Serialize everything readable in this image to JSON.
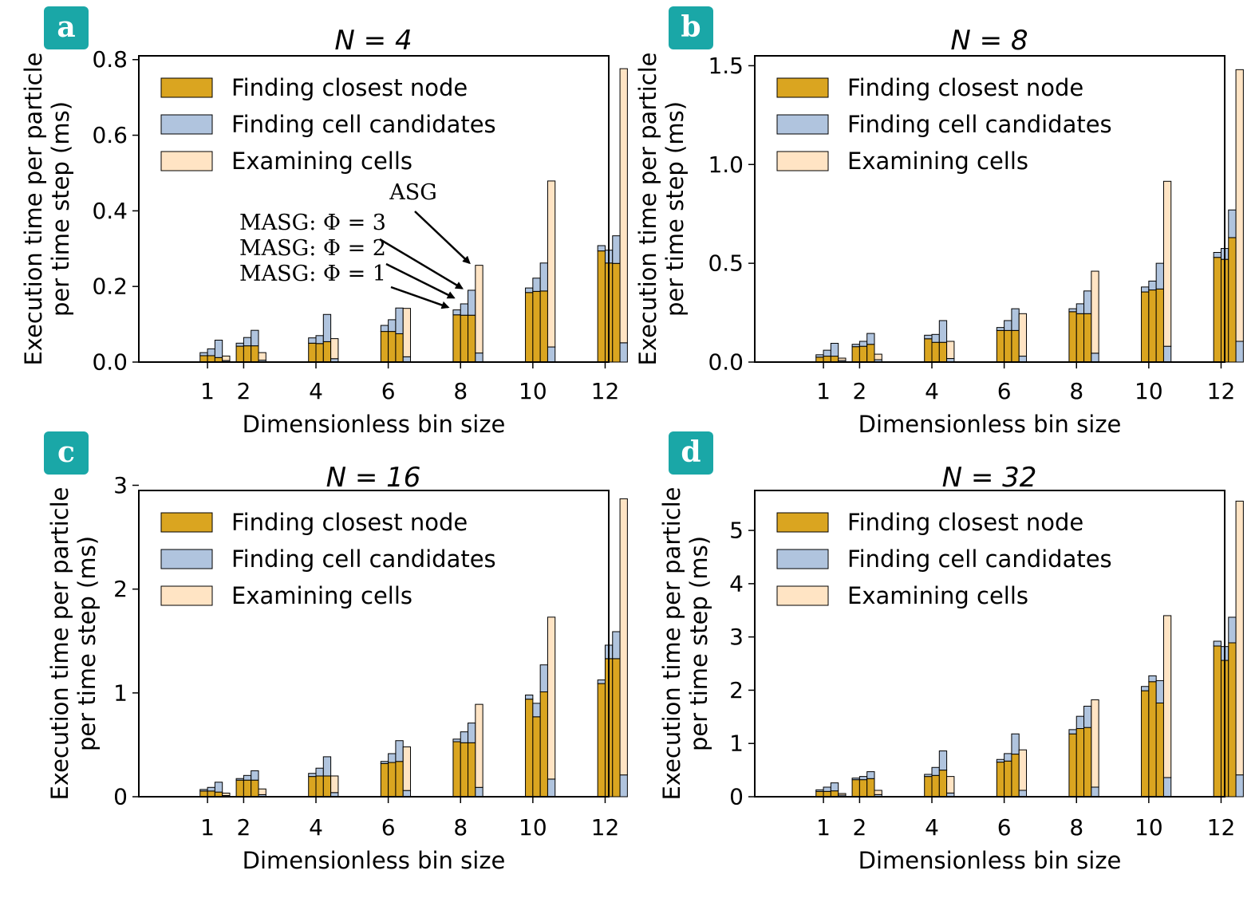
{
  "colors": {
    "closest_node": "#DAA520",
    "cell_candidates": "#B0C4DE",
    "examining_cells": "#FFE4C4",
    "badge": "#1AA7A7",
    "badge_text": "#ffffff",
    "bar_edge": "#000000"
  },
  "legend": [
    "Finding closest node",
    "Finding cell candidates",
    "Examining cells"
  ],
  "annotations": {
    "asg": "ASG",
    "masg3": "MASG: Φ = 3",
    "masg2": "MASG: Φ = 2",
    "masg1": "MASG: Φ = 1"
  },
  "chart_data": [
    {
      "type": "bar",
      "panel_label": "a",
      "title": "N = 4",
      "xlabel": "Dimensionless bin size",
      "ylabel": [
        "Execution time per particle",
        "per time step (ms)"
      ],
      "x": [
        1,
        2,
        4,
        6,
        8,
        10,
        12
      ],
      "xlim": [
        -0.9,
        12.1
      ],
      "ylim": [
        0,
        0.81
      ],
      "yticks": [
        "0.0",
        "0.2",
        "0.4",
        "0.6",
        "0.8"
      ],
      "ytick_values": [
        0,
        0.2,
        0.4,
        0.6,
        0.8
      ],
      "legend_position": "top-left",
      "series": [
        {
          "name": "MASG: Φ = 1",
          "closest_node": [
            0.017,
            0.042,
            0.05,
            0.081,
            0.125,
            0.184,
            0.294
          ],
          "cell_candidates": [
            0.008,
            0.008,
            0.014,
            0.016,
            0.013,
            0.012,
            0.014
          ]
        },
        {
          "name": "MASG: Φ = 2",
          "closest_node": [
            0.017,
            0.043,
            0.049,
            0.081,
            0.124,
            0.187,
            0.262
          ],
          "cell_candidates": [
            0.018,
            0.022,
            0.021,
            0.031,
            0.03,
            0.035,
            0.034
          ]
        },
        {
          "name": "MASG: Φ = 3",
          "closest_node": [
            0.012,
            0.043,
            0.054,
            0.075,
            0.124,
            0.188,
            0.261
          ],
          "cell_candidates": [
            0.046,
            0.041,
            0.072,
            0.068,
            0.066,
            0.074,
            0.073
          ]
        },
        {
          "name": "ASG",
          "cell_candidates": [
            0.004,
            0.005,
            0.009,
            0.014,
            0.024,
            0.04,
            0.051
          ],
          "examining_cells": [
            0.012,
            0.02,
            0.053,
            0.128,
            0.232,
            0.439,
            0.725
          ]
        }
      ]
    },
    {
      "type": "bar",
      "panel_label": "b",
      "title": "N = 8",
      "xlabel": "Dimensionless bin size",
      "ylabel": [
        "Execution time per particle",
        "per time step (ms)"
      ],
      "x": [
        1,
        2,
        4,
        6,
        8,
        10,
        12
      ],
      "xlim": [
        -0.9,
        12.1
      ],
      "ylim": [
        0,
        1.55
      ],
      "yticks": [
        "0.0",
        "0.5",
        "1.0",
        "1.5"
      ],
      "ytick_values": [
        0,
        0.5,
        1.0,
        1.5
      ],
      "legend_position": "top-left",
      "series": [
        {
          "name": "MASG: Φ = 1",
          "closest_node": [
            0.025,
            0.078,
            0.118,
            0.16,
            0.255,
            0.355,
            0.53
          ],
          "cell_candidates": [
            0.012,
            0.012,
            0.018,
            0.015,
            0.015,
            0.025,
            0.025
          ]
        },
        {
          "name": "MASG: Φ = 2",
          "closest_node": [
            0.03,
            0.08,
            0.1,
            0.16,
            0.245,
            0.365,
            0.52
          ],
          "cell_candidates": [
            0.03,
            0.025,
            0.04,
            0.05,
            0.05,
            0.045,
            0.055
          ]
        },
        {
          "name": "MASG: Φ = 3",
          "closest_node": [
            0.03,
            0.09,
            0.1,
            0.16,
            0.245,
            0.37,
            0.63
          ],
          "cell_candidates": [
            0.065,
            0.055,
            0.11,
            0.11,
            0.115,
            0.13,
            0.14
          ]
        },
        {
          "name": "ASG",
          "cell_candidates": [
            0.008,
            0.012,
            0.018,
            0.03,
            0.045,
            0.08,
            0.105
          ],
          "examining_cells": [
            0.012,
            0.028,
            0.087,
            0.215,
            0.415,
            0.835,
            1.375
          ]
        }
      ]
    },
    {
      "type": "bar",
      "panel_label": "c",
      "title": "N = 16",
      "xlabel": "Dimensionless bin size",
      "ylabel": [
        "Execution time per particle",
        "per time step (ms)"
      ],
      "x": [
        1,
        2,
        4,
        6,
        8,
        10,
        12
      ],
      "xlim": [
        -0.9,
        12.1
      ],
      "ylim": [
        0,
        2.95
      ],
      "yticks": [
        "0",
        "1",
        "2",
        "3"
      ],
      "ytick_values": [
        0,
        1,
        2,
        3
      ],
      "legend_position": "top-left",
      "series": [
        {
          "name": "MASG: Φ = 1",
          "closest_node": [
            0.055,
            0.16,
            0.195,
            0.32,
            0.53,
            0.94,
            1.09
          ],
          "cell_candidates": [
            0.015,
            0.015,
            0.03,
            0.02,
            0.025,
            0.04,
            0.035
          ]
        },
        {
          "name": "MASG: Φ = 2",
          "closest_node": [
            0.055,
            0.16,
            0.2,
            0.33,
            0.52,
            0.77,
            1.33
          ],
          "cell_candidates": [
            0.035,
            0.045,
            0.075,
            0.085,
            0.105,
            0.13,
            0.13
          ]
        },
        {
          "name": "MASG: Φ = 3",
          "closest_node": [
            0.045,
            0.16,
            0.2,
            0.34,
            0.52,
            1.01,
            1.33
          ],
          "cell_candidates": [
            0.095,
            0.09,
            0.185,
            0.2,
            0.19,
            0.26,
            0.26
          ]
        },
        {
          "name": "ASG",
          "cell_candidates": [
            0.012,
            0.02,
            0.04,
            0.06,
            0.09,
            0.17,
            0.21
          ],
          "examining_cells": [
            0.023,
            0.055,
            0.16,
            0.42,
            0.8,
            1.56,
            2.66
          ]
        }
      ]
    },
    {
      "type": "bar",
      "panel_label": "d",
      "title": "N = 32",
      "xlabel": "Dimensionless bin size",
      "ylabel": [
        "Execution time per particle",
        "per time step (ms)"
      ],
      "x": [
        1,
        2,
        4,
        6,
        8,
        10,
        12
      ],
      "xlim": [
        -0.9,
        12.1
      ],
      "ylim": [
        0,
        5.75
      ],
      "yticks": [
        "0",
        "1",
        "2",
        "3",
        "4",
        "5"
      ],
      "ytick_values": [
        0,
        1,
        2,
        3,
        4,
        5
      ],
      "legend_position": "top-left",
      "series": [
        {
          "name": "MASG: Φ = 1",
          "closest_node": [
            0.1,
            0.32,
            0.38,
            0.65,
            1.18,
            1.99,
            2.83
          ],
          "cell_candidates": [
            0.03,
            0.03,
            0.04,
            0.05,
            0.08,
            0.08,
            0.09
          ]
        },
        {
          "name": "MASG: Φ = 2",
          "closest_node": [
            0.1,
            0.32,
            0.4,
            0.67,
            1.28,
            2.16,
            2.56
          ],
          "cell_candidates": [
            0.08,
            0.06,
            0.15,
            0.14,
            0.23,
            0.11,
            0.26
          ]
        },
        {
          "name": "MASG: Φ = 3",
          "closest_node": [
            0.11,
            0.34,
            0.5,
            0.8,
            1.3,
            1.76,
            2.89
          ],
          "cell_candidates": [
            0.15,
            0.13,
            0.36,
            0.38,
            0.4,
            0.42,
            0.48
          ]
        },
        {
          "name": "ASG",
          "cell_candidates": [
            0.03,
            0.04,
            0.07,
            0.12,
            0.18,
            0.36,
            0.41
          ],
          "examining_cells": [
            0.03,
            0.08,
            0.31,
            0.76,
            1.64,
            3.04,
            5.14
          ]
        }
      ]
    }
  ]
}
